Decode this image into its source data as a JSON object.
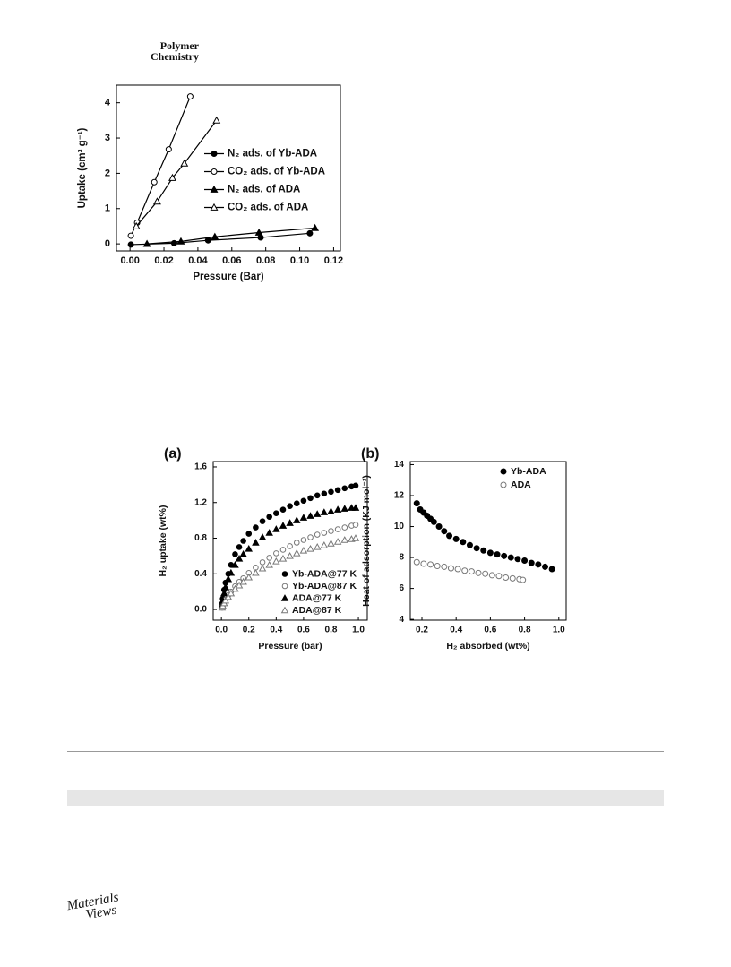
{
  "header": {
    "title": [
      "Polymer",
      "Chemistry"
    ]
  },
  "chart_data": [
    {
      "type": "scatter",
      "lines": true,
      "y_label": "Uptake (cm³ g⁻¹)",
      "x_label": "Pressure (Bar)",
      "xlim": [
        -0.008,
        0.124
      ],
      "ylim": [
        -0.2,
        4.5
      ],
      "xticks": [
        {
          "value": 0,
          "label": "0.00"
        },
        0.02,
        0.04,
        0.06,
        0.08,
        {
          "value": 0.1,
          "label": "0.10"
        },
        0.12
      ],
      "yticks": [
        0,
        1,
        2,
        3,
        4
      ],
      "legend": "center right",
      "series": [
        {
          "name": "N₂ ads. of Yb-ADA",
          "color": "#000000",
          "marker": "circle",
          "filled": true,
          "x": [
            0.0005,
            0.026,
            0.046,
            0.077,
            0.106
          ],
          "values": [
            -0.02,
            0.02,
            0.1,
            0.18,
            0.3
          ]
        },
        {
          "name": "CO₂ ads. of Yb-ADA",
          "color": "#000000",
          "marker": "circle",
          "filled": false,
          "x": [
            0.0005,
            0.0042,
            0.0143,
            0.0228,
            0.0355
          ],
          "values": [
            0.23,
            0.6,
            1.75,
            2.68,
            4.18
          ]
        },
        {
          "name": "N₂ ads. of ADA",
          "color": "#000000",
          "marker": "triangle",
          "filled": true,
          "x": [
            0.01,
            0.03,
            0.05,
            0.076,
            0.109
          ],
          "values": [
            0.0,
            0.07,
            0.2,
            0.32,
            0.45
          ]
        },
        {
          "name": "CO₂ ads. of ADA",
          "color": "#000000",
          "marker": "triangle",
          "filled": false,
          "x": [
            0.0037,
            0.016,
            0.025,
            0.032,
            0.051
          ],
          "values": [
            0.5,
            1.2,
            1.87,
            2.28,
            3.5
          ]
        }
      ]
    },
    {
      "type": "scatter",
      "lines": false,
      "panel_label": "(a)",
      "y_label": "H₂ uptake (wt%)",
      "x_label": "Pressure (bar)",
      "xlim": [
        -0.06,
        1.065
      ],
      "ylim": [
        -0.12,
        1.66
      ],
      "xticks": [
        {
          "value": 0,
          "label": "0.0"
        },
        0.2,
        0.4,
        0.6,
        0.8,
        {
          "value": 1,
          "label": "1.0"
        }
      ],
      "yticks": [
        {
          "value": 0,
          "label": "0.0"
        },
        0.4,
        0.8,
        1.2,
        1.6
      ],
      "legend": "lower right",
      "x": [
        0.005,
        0.01,
        0.02,
        0.03,
        0.05,
        0.07,
        0.1,
        0.13,
        0.16,
        0.2,
        0.25,
        0.3,
        0.35,
        0.4,
        0.45,
        0.5,
        0.55,
        0.6,
        0.65,
        0.7,
        0.75,
        0.8,
        0.85,
        0.9,
        0.95,
        0.98
      ],
      "series": [
        {
          "name": "Yb-ADA@77 K",
          "color": "#000000",
          "marker": "circle",
          "filled": true,
          "values": [
            0.05,
            0.12,
            0.22,
            0.3,
            0.4,
            0.5,
            0.62,
            0.7,
            0.77,
            0.85,
            0.92,
            0.99,
            1.04,
            1.08,
            1.12,
            1.16,
            1.19,
            1.22,
            1.25,
            1.28,
            1.3,
            1.32,
            1.34,
            1.36,
            1.38,
            1.39
          ]
        },
        {
          "name": "Yb-ADA@87 K",
          "color": "#777777",
          "marker": "circle",
          "filled": false,
          "values": [
            0.02,
            0.04,
            0.08,
            0.11,
            0.16,
            0.2,
            0.26,
            0.31,
            0.35,
            0.41,
            0.47,
            0.53,
            0.58,
            0.63,
            0.67,
            0.71,
            0.75,
            0.78,
            0.81,
            0.84,
            0.86,
            0.88,
            0.9,
            0.92,
            0.94,
            0.95
          ]
        },
        {
          "name": "ADA@77 K",
          "color": "#000000",
          "marker": "triangle",
          "filled": true,
          "values": [
            0.04,
            0.1,
            0.18,
            0.25,
            0.34,
            0.41,
            0.5,
            0.57,
            0.62,
            0.68,
            0.75,
            0.81,
            0.86,
            0.9,
            0.94,
            0.97,
            1.0,
            1.03,
            1.05,
            1.07,
            1.09,
            1.1,
            1.12,
            1.13,
            1.14,
            1.14
          ]
        },
        {
          "name": "ADA@87 K",
          "color": "#777777",
          "marker": "triangle",
          "filled": false,
          "values": [
            0.02,
            0.04,
            0.07,
            0.1,
            0.14,
            0.18,
            0.23,
            0.27,
            0.31,
            0.36,
            0.41,
            0.46,
            0.5,
            0.54,
            0.57,
            0.6,
            0.63,
            0.66,
            0.68,
            0.7,
            0.72,
            0.74,
            0.76,
            0.78,
            0.79,
            0.8
          ]
        }
      ]
    },
    {
      "type": "scatter",
      "lines": false,
      "panel_label": "(b)",
      "y_label": "Heat of adsorption (KJ mol⁻¹)",
      "x_label": "H₂ absorbed (wt%)",
      "xlim": [
        0.132,
        1.043
      ],
      "ylim": [
        3.95,
        14.2
      ],
      "xticks": [
        0.2,
        0.4,
        0.6,
        0.8,
        {
          "value": 1,
          "label": "1.0"
        }
      ],
      "yticks": [
        4,
        6,
        8,
        10,
        12,
        14
      ],
      "legend": "upper right",
      "series": [
        {
          "name": "Yb-ADA",
          "color": "#000000",
          "marker": "circle",
          "filled": true,
          "x": [
            0.17,
            0.19,
            0.21,
            0.23,
            0.25,
            0.27,
            0.3,
            0.33,
            0.36,
            0.4,
            0.44,
            0.48,
            0.52,
            0.56,
            0.6,
            0.64,
            0.68,
            0.72,
            0.76,
            0.8,
            0.84,
            0.88,
            0.92,
            0.96
          ],
          "values": [
            11.5,
            11.1,
            10.9,
            10.7,
            10.5,
            10.3,
            10.0,
            9.7,
            9.4,
            9.2,
            9.0,
            8.8,
            8.6,
            8.45,
            8.3,
            8.2,
            8.1,
            8.0,
            7.9,
            7.8,
            7.65,
            7.55,
            7.4,
            7.25
          ]
        },
        {
          "name": "ADA",
          "color": "#777777",
          "marker": "circle",
          "filled": false,
          "x": [
            0.17,
            0.21,
            0.25,
            0.29,
            0.33,
            0.37,
            0.41,
            0.45,
            0.49,
            0.53,
            0.57,
            0.61,
            0.65,
            0.69,
            0.73,
            0.77,
            0.79
          ],
          "values": [
            7.7,
            7.6,
            7.55,
            7.45,
            7.4,
            7.3,
            7.25,
            7.15,
            7.1,
            7.0,
            6.95,
            6.85,
            6.8,
            6.7,
            6.65,
            6.6,
            6.55
          ]
        }
      ]
    }
  ],
  "footer": {
    "logo": [
      "Materials",
      "Views"
    ]
  }
}
